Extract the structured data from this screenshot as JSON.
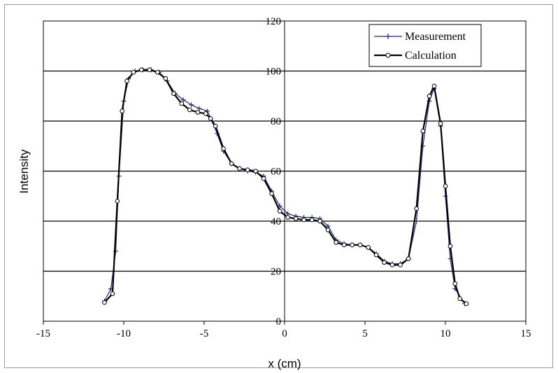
{
  "chart_data": {
    "type": "line",
    "xlabel": "x (cm)",
    "ylabel": "Intensity",
    "xlim": [
      -15,
      15
    ],
    "ylim": [
      0,
      120
    ],
    "x_ticks": [
      -15,
      -10,
      -5,
      0,
      5,
      10,
      15
    ],
    "y_ticks": [
      0,
      20,
      40,
      60,
      80,
      100,
      120
    ],
    "grid": "horizontal",
    "legend_position": "top-right",
    "series": [
      {
        "name": "Measurement",
        "marker": "plus",
        "color": "#1f2a6e",
        "points": [
          [
            -11.2,
            8
          ],
          [
            -10.8,
            13
          ],
          [
            -10.5,
            28
          ],
          [
            -10.3,
            58
          ],
          [
            -10.0,
            88
          ],
          [
            -9.7,
            97
          ],
          [
            -9.3,
            100
          ],
          [
            -8.8,
            100.5
          ],
          [
            -8.3,
            100.5
          ],
          [
            -7.8,
            99.5
          ],
          [
            -7.3,
            96
          ],
          [
            -6.8,
            91
          ],
          [
            -6.3,
            88.5
          ],
          [
            -5.8,
            86.5
          ],
          [
            -5.3,
            85
          ],
          [
            -4.8,
            84
          ],
          [
            -4.5,
            80
          ],
          [
            -4.2,
            75
          ],
          [
            -3.8,
            68
          ],
          [
            -3.3,
            63
          ],
          [
            -2.8,
            61
          ],
          [
            -2.3,
            60
          ],
          [
            -1.8,
            59.5
          ],
          [
            -1.3,
            58
          ],
          [
            -0.8,
            52
          ],
          [
            -0.3,
            46
          ],
          [
            0.2,
            43
          ],
          [
            0.7,
            42
          ],
          [
            1.2,
            41.5
          ],
          [
            1.7,
            41.5
          ],
          [
            2.2,
            41
          ],
          [
            2.7,
            38
          ],
          [
            3.2,
            32.5
          ],
          [
            3.7,
            31
          ],
          [
            4.2,
            30.5
          ],
          [
            4.7,
            30.5
          ],
          [
            5.2,
            29.5
          ],
          [
            5.7,
            27
          ],
          [
            6.2,
            24
          ],
          [
            6.7,
            23
          ],
          [
            7.2,
            23
          ],
          [
            7.7,
            25
          ],
          [
            8.2,
            40
          ],
          [
            8.6,
            70
          ],
          [
            9.0,
            88
          ],
          [
            9.3,
            93
          ],
          [
            9.7,
            78
          ],
          [
            10.0,
            50
          ],
          [
            10.3,
            25
          ],
          [
            10.6,
            13
          ],
          [
            11.2,
            7
          ]
        ]
      },
      {
        "name": "Calculation",
        "marker": "circle",
        "color": "#000000",
        "points": [
          [
            -11.2,
            7.5
          ],
          [
            -10.7,
            11
          ],
          [
            -10.4,
            48
          ],
          [
            -10.1,
            84
          ],
          [
            -9.8,
            96
          ],
          [
            -9.4,
            99.5
          ],
          [
            -8.9,
            100.5
          ],
          [
            -8.4,
            100.5
          ],
          [
            -7.9,
            99.5
          ],
          [
            -7.4,
            97
          ],
          [
            -6.9,
            91
          ],
          [
            -6.4,
            87
          ],
          [
            -5.9,
            84.5
          ],
          [
            -5.4,
            83.5
          ],
          [
            -4.9,
            83
          ],
          [
            -4.6,
            81
          ],
          [
            -4.3,
            78
          ],
          [
            -3.8,
            69
          ],
          [
            -3.3,
            63
          ],
          [
            -2.8,
            61
          ],
          [
            -2.3,
            60.5
          ],
          [
            -1.8,
            60
          ],
          [
            -1.3,
            57
          ],
          [
            -0.8,
            51
          ],
          [
            -0.3,
            44
          ],
          [
            0.2,
            41.5
          ],
          [
            0.7,
            41
          ],
          [
            1.2,
            40.5
          ],
          [
            1.7,
            40.5
          ],
          [
            2.2,
            40
          ],
          [
            2.7,
            36.5
          ],
          [
            3.2,
            31.5
          ],
          [
            3.7,
            30.5
          ],
          [
            4.2,
            30.5
          ],
          [
            4.7,
            30.5
          ],
          [
            5.2,
            29.5
          ],
          [
            5.7,
            26.5
          ],
          [
            6.2,
            23.5
          ],
          [
            6.7,
            22.5
          ],
          [
            7.2,
            22.5
          ],
          [
            7.7,
            25
          ],
          [
            8.2,
            45
          ],
          [
            8.6,
            76
          ],
          [
            9.0,
            90
          ],
          [
            9.3,
            94
          ],
          [
            9.7,
            79
          ],
          [
            10.0,
            54
          ],
          [
            10.3,
            30
          ],
          [
            10.6,
            15
          ],
          [
            10.9,
            9
          ],
          [
            11.3,
            7
          ]
        ]
      }
    ]
  }
}
